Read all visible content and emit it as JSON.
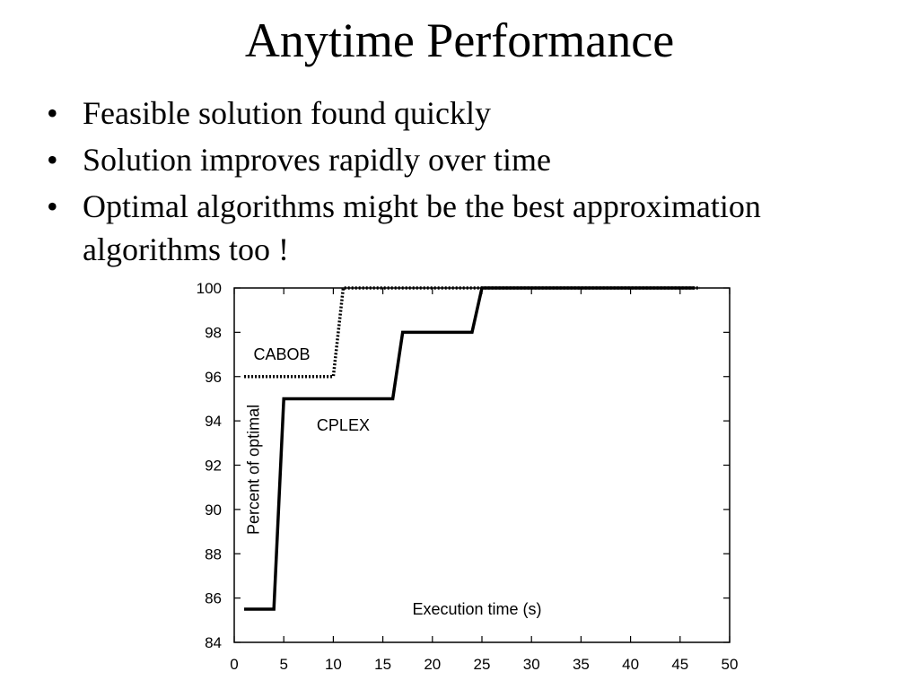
{
  "slide": {
    "title": "Anytime Performance",
    "bullets": [
      "Feasible solution found quickly",
      "Solution improves rapidly over time",
      "Optimal algorithms might be the best approximation algorithms too !"
    ]
  },
  "chart_data": {
    "type": "line",
    "title": "",
    "xlabel": "Execution time (s)",
    "ylabel": "Percent of optimal",
    "xlim": [
      0,
      50
    ],
    "ylim": [
      84,
      100
    ],
    "x_ticks": [
      0,
      5,
      10,
      15,
      20,
      25,
      30,
      35,
      40,
      45,
      50
    ],
    "y_ticks": [
      84,
      86,
      88,
      90,
      92,
      94,
      96,
      98,
      100
    ],
    "grid": false,
    "series": [
      {
        "name": "CABOB",
        "style": "dotted",
        "color": "#000000",
        "points": [
          [
            1,
            96
          ],
          [
            10,
            96
          ],
          [
            11,
            100
          ],
          [
            47,
            100
          ]
        ]
      },
      {
        "name": "CPLEX",
        "style": "solid",
        "color": "#000000",
        "points": [
          [
            1,
            85.5
          ],
          [
            4,
            85.5
          ],
          [
            5,
            95
          ],
          [
            16,
            95
          ],
          [
            17,
            98
          ],
          [
            24,
            98
          ],
          [
            25,
            100
          ],
          [
            46.5,
            100
          ]
        ]
      }
    ]
  }
}
